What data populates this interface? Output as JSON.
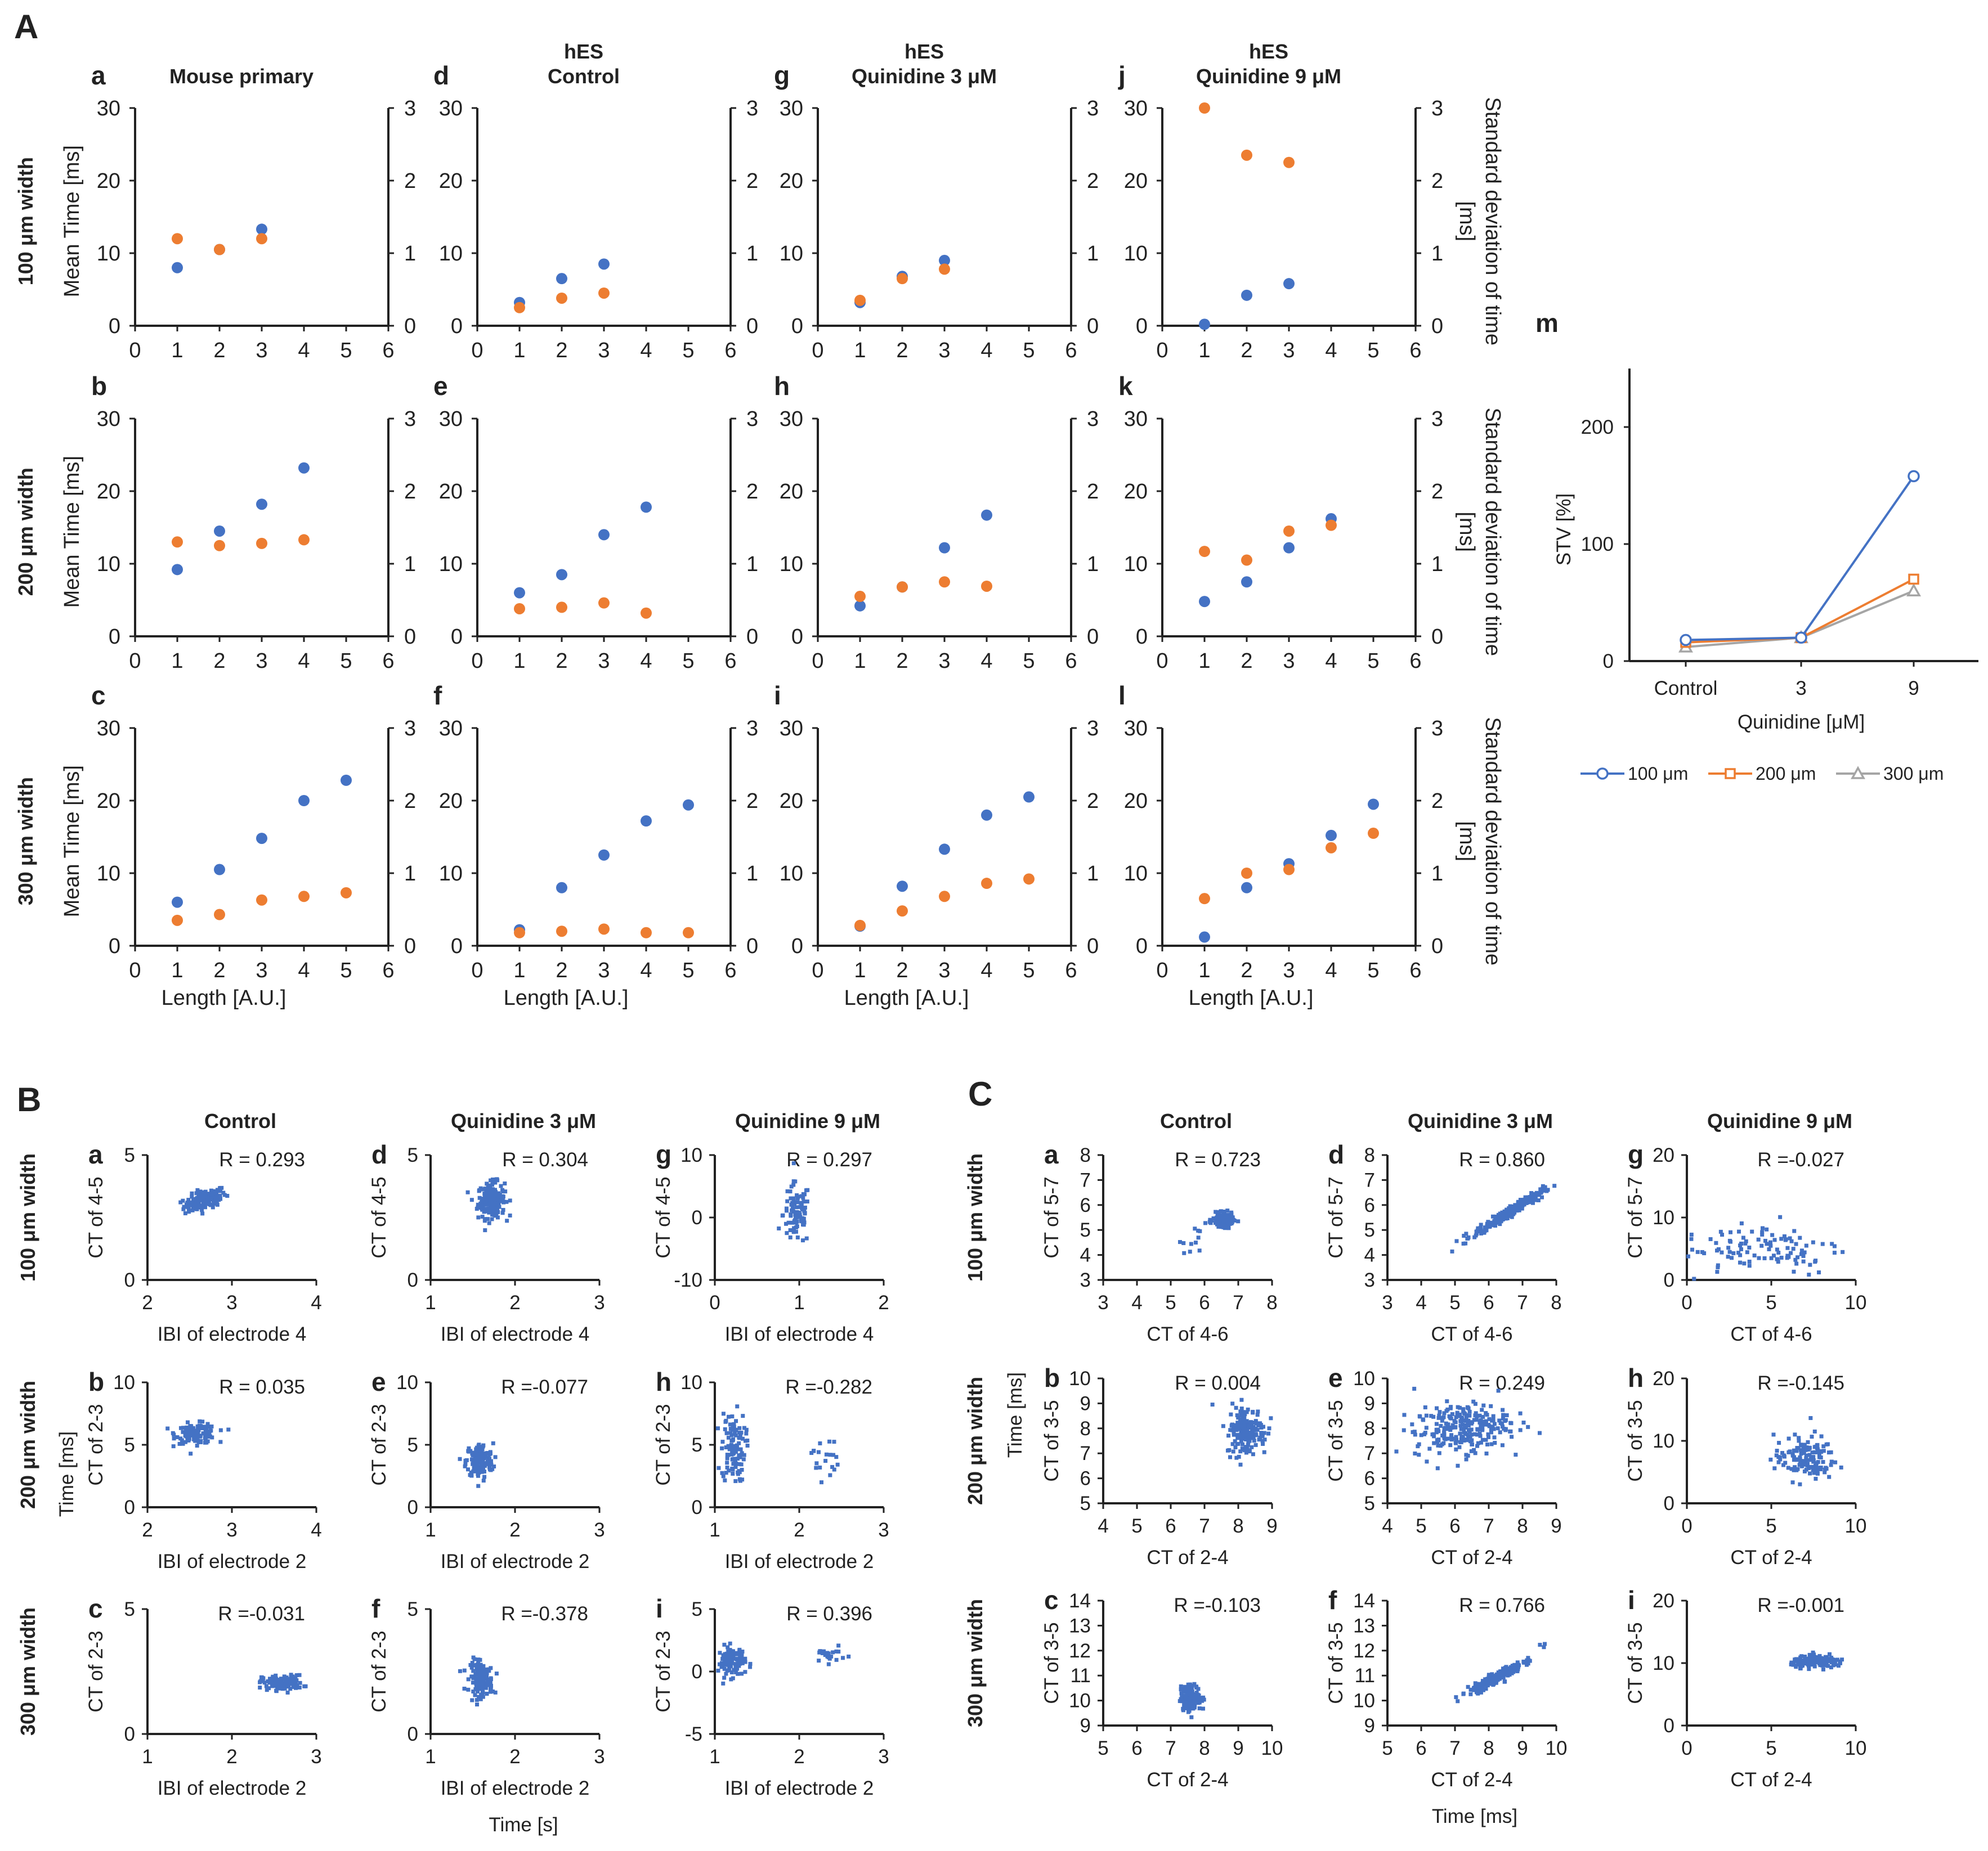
{
  "colors": {
    "blue": "#4472C4",
    "orange": "#ED7D31",
    "gray": "#A5A5A5"
  },
  "labels": {
    "A": "A",
    "B": "B",
    "C": "C",
    "A_titles": [
      "Mouse primary",
      "hES\nControl",
      "hES\nQuinidine 3 μM",
      "hES\nQuinidine 9 μM"
    ],
    "A_rows": [
      "100 μm width",
      "200 μm width",
      "300 μm width"
    ],
    "A_ylabel": "Mean Time [ms]",
    "A_y2label": "Standard deviation of time\n[ms]",
    "A_xlabel": "Length [A.U.]",
    "B_titles": [
      "Control",
      "Quinidine 3 μM",
      "Quinidine 9 μM"
    ],
    "B_rows": [
      "100 μm width",
      "200 μm width",
      "300 μm width"
    ],
    "B_ylabel_extra": "Time [ms]",
    "B_xlabel_extra": "Time [s]",
    "C_titles": [
      "Control",
      "Quinidine 3 μM",
      "Quinidine 9 μM"
    ],
    "C_rows": [
      "100 μm width",
      "200 μm width",
      "300 μm width"
    ],
    "C_ylabel_extra": "Time [ms]",
    "C_xlabel_extra": "Time [ms]"
  },
  "chart_data": {
    "A": [
      {
        "letter": "a",
        "type": "scatter",
        "x": [
          1,
          2,
          3
        ],
        "mean": [
          8,
          10.5,
          13.3
        ],
        "sd": [
          1.2,
          1.05,
          1.2
        ]
      },
      {
        "letter": "d",
        "type": "scatter",
        "x": [
          1,
          2,
          3
        ],
        "mean": [
          3.2,
          6.5,
          8.5
        ],
        "sd": [
          0.25,
          0.38,
          0.45
        ]
      },
      {
        "letter": "g",
        "type": "scatter",
        "x": [
          1,
          2,
          3
        ],
        "mean": [
          3.2,
          6.8,
          9
        ],
        "sd": [
          0.35,
          0.65,
          0.78
        ]
      },
      {
        "letter": "j",
        "type": "scatter",
        "x": [
          1,
          2,
          3
        ],
        "mean": [
          0.2,
          4.2,
          5.8
        ],
        "sd": [
          3,
          2.35,
          2.25
        ]
      },
      {
        "letter": "b",
        "type": "scatter",
        "x": [
          1,
          2,
          3,
          4
        ],
        "mean": [
          9.2,
          14.5,
          18.2,
          23.2
        ],
        "sd": [
          1.3,
          1.25,
          1.28,
          1.33
        ]
      },
      {
        "letter": "e",
        "type": "scatter",
        "x": [
          1,
          2,
          3,
          4
        ],
        "mean": [
          6,
          8.5,
          14,
          17.8
        ],
        "sd": [
          0.38,
          0.4,
          0.46,
          0.32
        ]
      },
      {
        "letter": "h",
        "type": "scatter",
        "x": [
          1,
          2,
          3,
          4
        ],
        "mean": [
          4.2,
          6.8,
          12.2,
          16.7
        ],
        "sd": [
          0.55,
          0.68,
          0.75,
          0.69
        ]
      },
      {
        "letter": "k",
        "type": "scatter",
        "x": [
          1,
          2,
          3,
          4
        ],
        "mean": [
          4.8,
          7.5,
          12.2,
          16.2
        ],
        "sd": [
          1.17,
          1.05,
          1.45,
          1.53
        ]
      },
      {
        "letter": "c",
        "type": "scatter",
        "x": [
          1,
          2,
          3,
          4,
          5
        ],
        "mean": [
          6,
          10.5,
          14.8,
          20,
          22.8
        ],
        "sd": [
          0.35,
          0.43,
          0.63,
          0.68,
          0.73
        ]
      },
      {
        "letter": "f",
        "type": "scatter",
        "x": [
          1,
          2,
          3,
          4,
          5
        ],
        "mean": [
          2.2,
          8,
          12.5,
          17.2,
          19.4
        ],
        "sd": [
          0.18,
          0.2,
          0.23,
          0.18,
          0.18
        ]
      },
      {
        "letter": "i",
        "type": "scatter",
        "x": [
          1,
          2,
          3,
          4,
          5
        ],
        "mean": [
          2.7,
          8.2,
          13.3,
          18,
          20.5
        ],
        "sd": [
          0.28,
          0.48,
          0.68,
          0.86,
          0.92
        ]
      },
      {
        "letter": "l",
        "type": "scatter",
        "x": [
          1,
          2,
          3,
          4,
          5
        ],
        "mean": [
          1.2,
          8,
          11.3,
          15.2,
          19.5
        ],
        "sd": [
          0.65,
          1,
          1.05,
          1.35,
          1.55
        ]
      }
    ],
    "A_axes": {
      "xlim": [
        0,
        6
      ],
      "xticks": [
        "0",
        "1",
        "2",
        "3",
        "4",
        "5",
        "6"
      ],
      "ylim": [
        0,
        30
      ],
      "yticks": [
        "0",
        "10",
        "20",
        "30"
      ],
      "y2lim": [
        0,
        3
      ],
      "y2ticks": [
        "0",
        "1",
        "2",
        "3"
      ]
    },
    "m": {
      "letter": "m",
      "type": "line",
      "categories": [
        "Control",
        "3",
        "9"
      ],
      "yticks": [
        "0",
        "100",
        "200"
      ],
      "ylim": [
        0,
        250
      ],
      "ylabel": "STV [%]",
      "xlabel": "Quinidine [μM]",
      "series": [
        {
          "name": "100 μm",
          "values": [
            18,
            20,
            158
          ]
        },
        {
          "name": "200 μm",
          "values": [
            16,
            20,
            70
          ]
        },
        {
          "name": "300 μm",
          "values": [
            12,
            20,
            60
          ]
        }
      ]
    },
    "B": [
      {
        "letter": "a",
        "R": "R = 0.293",
        "xlabel": "IBI of electrode 4",
        "ylabel": "CT of 4-5",
        "xticks": [
          "2",
          "3",
          "4"
        ],
        "yticks": [
          "0",
          "5"
        ],
        "xlim": [
          2,
          4
        ],
        "ylim": [
          0,
          5
        ],
        "cluster": [
          {
            "cx": 2.68,
            "cy": 3.2,
            "sx": 0.13,
            "sy": 0.2,
            "n": 130,
            "rot": 0.3
          }
        ]
      },
      {
        "letter": "d",
        "R": "R = 0.304",
        "xlabel": "IBI of electrode 4",
        "ylabel": "CT of 4-5",
        "xticks": [
          "1",
          "2",
          "3"
        ],
        "yticks": [
          "0",
          "5"
        ],
        "xlim": [
          1,
          3
        ],
        "ylim": [
          0,
          5
        ],
        "cluster": [
          {
            "cx": 1.72,
            "cy": 3.2,
            "sx": 0.08,
            "sy": 0.35,
            "n": 200,
            "rot": 0.1
          }
        ]
      },
      {
        "letter": "g",
        "R": "R = 0.297",
        "xlabel": "IBI of electrode 4",
        "ylabel": "CT of 4-5",
        "xticks": [
          "0",
          "1",
          "2"
        ],
        "yticks": [
          "-10",
          "0",
          "10"
        ],
        "xlim": [
          0,
          2
        ],
        "ylim": [
          -10,
          10
        ],
        "cluster": [
          {
            "cx": 0.97,
            "cy": 0.5,
            "sx": 0.08,
            "sy": 2.5,
            "n": 90,
            "rot": 0
          }
        ]
      },
      {
        "letter": "b",
        "R": "R = 0.035",
        "xlabel": "IBI of electrode 2",
        "ylabel": "CT of 2-3",
        "xticks": [
          "2",
          "3",
          "4"
        ],
        "yticks": [
          "0",
          "5",
          "10"
        ],
        "xlim": [
          2,
          4
        ],
        "ylim": [
          0,
          10
        ],
        "cluster": [
          {
            "cx": 2.58,
            "cy": 5.9,
            "sx": 0.12,
            "sy": 0.4,
            "n": 130,
            "rot": 0
          }
        ]
      },
      {
        "letter": "e",
        "R": "R =-0.077",
        "xlabel": "IBI of electrode 2",
        "ylabel": "CT of 2-3",
        "xticks": [
          "1",
          "2",
          "3"
        ],
        "yticks": [
          "0",
          "5",
          "10"
        ],
        "xlim": [
          1,
          3
        ],
        "ylim": [
          0,
          10
        ],
        "cluster": [
          {
            "cx": 1.58,
            "cy": 3.7,
            "sx": 0.08,
            "sy": 0.7,
            "n": 150,
            "rot": 0
          }
        ]
      },
      {
        "letter": "h",
        "R": "R =-0.282",
        "xlabel": "IBI of electrode 2",
        "ylabel": "CT of 2-3",
        "xticks": [
          "1",
          "2",
          "3"
        ],
        "yticks": [
          "0",
          "5",
          "10"
        ],
        "xlim": [
          1,
          3
        ],
        "ylim": [
          0,
          10
        ],
        "cluster": [
          {
            "cx": 1.22,
            "cy": 4.8,
            "sx": 0.07,
            "sy": 1.4,
            "n": 110,
            "rot": 0
          },
          {
            "cx": 2.3,
            "cy": 4,
            "sx": 0.08,
            "sy": 0.9,
            "n": 20,
            "rot": 0
          }
        ]
      },
      {
        "letter": "c",
        "R": "R =-0.031",
        "xlabel": "IBI of electrode 2",
        "ylabel": "CT of 2-3",
        "xticks": [
          "1",
          "2",
          "3"
        ],
        "yticks": [
          "0",
          "5"
        ],
        "xlim": [
          1,
          3
        ],
        "ylim": [
          0,
          5
        ],
        "cluster": [
          {
            "cx": 2.6,
            "cy": 2.05,
            "sx": 0.12,
            "sy": 0.15,
            "n": 130,
            "rot": 0
          }
        ]
      },
      {
        "letter": "f",
        "R": "R =-0.378",
        "xlabel": "IBI of electrode 2",
        "ylabel": "CT of 2-3",
        "xticks": [
          "1",
          "2",
          "3"
        ],
        "yticks": [
          "0",
          "5"
        ],
        "xlim": [
          1,
          3
        ],
        "ylim": [
          0,
          5
        ],
        "cluster": [
          {
            "cx": 1.6,
            "cy": 2.2,
            "sx": 0.07,
            "sy": 0.35,
            "n": 150,
            "rot": -0.3
          }
        ]
      },
      {
        "letter": "i",
        "R": "R = 0.396",
        "xlabel": "IBI of electrode 2",
        "ylabel": "CT of 2-3",
        "xticks": [
          "1",
          "2",
          "3"
        ],
        "yticks": [
          "-5",
          "0",
          "5"
        ],
        "xlim": [
          1,
          3
        ],
        "ylim": [
          -5,
          5
        ],
        "cluster": [
          {
            "cx": 1.2,
            "cy": 0.8,
            "sx": 0.08,
            "sy": 0.6,
            "n": 110,
            "rot": 0
          },
          {
            "cx": 2.35,
            "cy": 1.3,
            "sx": 0.1,
            "sy": 0.3,
            "n": 20,
            "rot": 0
          }
        ]
      }
    ],
    "C": [
      {
        "letter": "a",
        "R": "R = 0.723",
        "xlabel": "CT of 4-6",
        "ylabel": "CT of 5-7",
        "xticks": [
          "3",
          "4",
          "5",
          "6",
          "7",
          "8"
        ],
        "yticks": [
          "3",
          "4",
          "5",
          "6",
          "7",
          "8"
        ],
        "xlim": [
          3,
          8
        ],
        "ylim": [
          3,
          8
        ],
        "cluster": [
          {
            "cx": 6.55,
            "cy": 5.4,
            "sx": 0.15,
            "sy": 0.13,
            "n": 150,
            "rot": 0
          },
          {
            "cx": 5.6,
            "cy": 4.4,
            "sx": 0.3,
            "sy": 0.4,
            "n": 12,
            "rot": 0.8
          }
        ]
      },
      {
        "letter": "d",
        "R": "R = 0.860",
        "xlabel": "CT of 4-6",
        "ylabel": "CT of 5-7",
        "xticks": [
          "3",
          "4",
          "5",
          "6",
          "7",
          "8"
        ],
        "yticks": [
          "3",
          "4",
          "5",
          "6",
          "7",
          "8"
        ],
        "xlim": [
          3,
          8
        ],
        "ylim": [
          3,
          8
        ],
        "cluster": [
          {
            "cx": 6.6,
            "cy": 5.7,
            "sx": 0.6,
            "sy": 0.12,
            "n": 250,
            "rot": 0.55
          }
        ]
      },
      {
        "letter": "g",
        "R": "R =-0.027",
        "xlabel": "CT of 4-6",
        "ylabel": "CT of 5-7",
        "xticks": [
          "0",
          "5",
          "10"
        ],
        "yticks": [
          "0",
          "10",
          "20"
        ],
        "xlim": [
          0,
          10
        ],
        "ylim": [
          0,
          20
        ],
        "cluster": [
          {
            "cx": 4.5,
            "cy": 5.2,
            "sx": 2.4,
            "sy": 2.3,
            "n": 110,
            "rot": 0
          }
        ]
      },
      {
        "letter": "b",
        "R": "R = 0.004",
        "xlabel": "CT of 2-4",
        "ylabel": "CT of 3-5",
        "xticks": [
          "4",
          "5",
          "6",
          "7",
          "8",
          "9"
        ],
        "yticks": [
          "5",
          "6",
          "7",
          "8",
          "9",
          "10"
        ],
        "xlim": [
          4,
          9
        ],
        "ylim": [
          5,
          10
        ],
        "cluster": [
          {
            "cx": 8.25,
            "cy": 7.9,
            "sx": 0.3,
            "sy": 0.5,
            "n": 180,
            "rot": 0
          }
        ]
      },
      {
        "letter": "e",
        "R": "R = 0.249",
        "xlabel": "CT of 2-4",
        "ylabel": "CT of 3-5",
        "xticks": [
          "4",
          "5",
          "6",
          "7",
          "8",
          "9"
        ],
        "yticks": [
          "5",
          "6",
          "7",
          "8",
          "9",
          "10"
        ],
        "xlim": [
          4,
          9
        ],
        "ylim": [
          5,
          10
        ],
        "cluster": [
          {
            "cx": 6.2,
            "cy": 8,
            "sx": 0.7,
            "sy": 0.5,
            "n": 260,
            "rot": 0.1
          }
        ]
      },
      {
        "letter": "h",
        "R": "R =-0.145",
        "xlabel": "CT of 2-4",
        "ylabel": "CT of 3-5",
        "xticks": [
          "0",
          "5",
          "10"
        ],
        "yticks": [
          "0",
          "10",
          "20"
        ],
        "xlim": [
          0,
          10
        ],
        "ylim": [
          0,
          20
        ],
        "cluster": [
          {
            "cx": 7,
            "cy": 7.2,
            "sx": 0.9,
            "sy": 1.8,
            "n": 140,
            "rot": 0
          }
        ]
      },
      {
        "letter": "c",
        "R": "R =-0.103",
        "xlabel": "CT of 2-4",
        "ylabel": "CT of 3-5",
        "xticks": [
          "5",
          "6",
          "7",
          "8",
          "9",
          "10"
        ],
        "yticks": [
          "9",
          "10",
          "11",
          "12",
          "13",
          "14"
        ],
        "xlim": [
          5,
          10
        ],
        "ylim": [
          9,
          14
        ],
        "cluster": [
          {
            "cx": 7.6,
            "cy": 10.1,
            "sx": 0.15,
            "sy": 0.25,
            "n": 180,
            "rot": 0
          }
        ]
      },
      {
        "letter": "f",
        "R": "R = 0.766",
        "xlabel": "CT of 2-4",
        "ylabel": "CT of 3-5",
        "xticks": [
          "5",
          "6",
          "7",
          "8",
          "9",
          "10"
        ],
        "yticks": [
          "9",
          "10",
          "11",
          "12",
          "13",
          "14"
        ],
        "xlim": [
          5,
          10
        ],
        "ylim": [
          9,
          14
        ],
        "cluster": [
          {
            "cx": 8.2,
            "cy": 10.9,
            "sx": 0.45,
            "sy": 0.12,
            "n": 220,
            "rot": 0.5
          },
          {
            "cx": 9.6,
            "cy": 12.2,
            "sx": 0.1,
            "sy": 0.1,
            "n": 3,
            "rot": 0
          }
        ]
      },
      {
        "letter": "i",
        "R": "R =-0.001",
        "xlabel": "CT of 2-4",
        "ylabel": "CT of 3-5",
        "xticks": [
          "0",
          "5",
          "10"
        ],
        "yticks": [
          "0",
          "10",
          "20"
        ],
        "xlim": [
          0,
          10
        ],
        "ylim": [
          0,
          20
        ],
        "cluster": [
          {
            "cx": 7.8,
            "cy": 10.2,
            "sx": 0.8,
            "sy": 0.45,
            "n": 160,
            "rot": 0
          }
        ]
      }
    ]
  }
}
